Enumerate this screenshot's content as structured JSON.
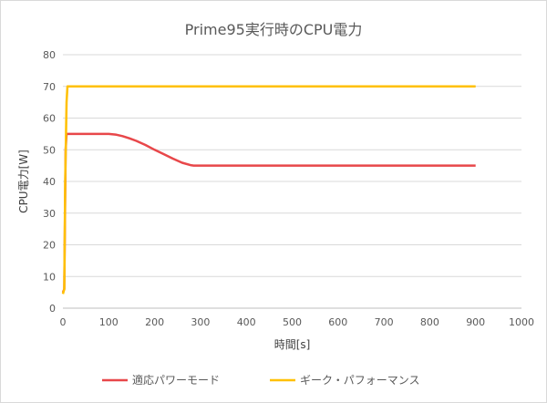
{
  "chart_data": {
    "type": "line",
    "title": "Prime95実行時のCPU電力",
    "xlabel": "時間[s]",
    "ylabel": "CPU電力[W]",
    "xlim": [
      0,
      1000
    ],
    "ylim": [
      0,
      80
    ],
    "xticks": [
      0,
      100,
      200,
      300,
      400,
      500,
      600,
      700,
      800,
      900,
      1000
    ],
    "yticks": [
      0,
      10,
      20,
      30,
      40,
      50,
      60,
      70,
      80
    ],
    "grid": true,
    "legend": "bottom",
    "series": [
      {
        "name": "適応パワーモード",
        "color": "#e8474a",
        "x": [
          0,
          3,
          6,
          8,
          10,
          50,
          100,
          115,
          130,
          145,
          160,
          180,
          200,
          220,
          240,
          260,
          280,
          285,
          300,
          400,
          500,
          600,
          700,
          800,
          900
        ],
        "y": [
          5,
          6,
          50,
          55,
          55,
          55,
          55,
          54.8,
          54.3,
          53.6,
          52.8,
          51.5,
          50,
          48.6,
          47.2,
          45.9,
          45.1,
          45,
          45,
          45,
          45,
          45,
          45,
          45,
          45
        ]
      },
      {
        "name": "ギーク・パフォーマンス",
        "color": "#ffc000",
        "x": [
          0,
          3,
          5,
          8,
          10,
          12,
          50,
          100,
          200,
          300,
          400,
          500,
          600,
          700,
          800,
          900
        ],
        "y": [
          4.5,
          6,
          40,
          65,
          70,
          70,
          70,
          70,
          70,
          70,
          70,
          70,
          70,
          70,
          70,
          70
        ]
      }
    ]
  }
}
